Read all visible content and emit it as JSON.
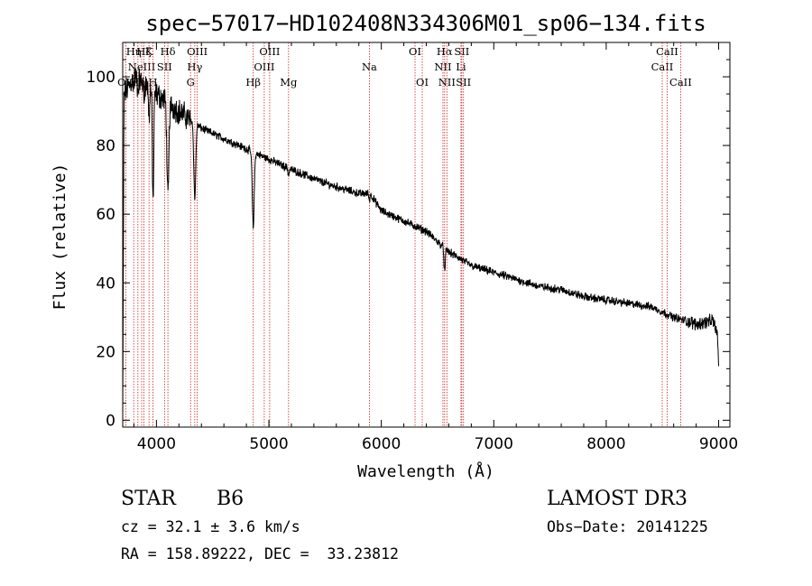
{
  "chart_data": {
    "type": "line",
    "title": "spec−57017−HD102408N334306M01_sp06−134.fits",
    "xlabel": "Wavelength (Å)",
    "ylabel": "Flux (relative)",
    "xlim": [
      3700,
      9100
    ],
    "ylim": [
      -2,
      110
    ],
    "x_ticks": [
      4000,
      5000,
      6000,
      7000,
      8000,
      9000
    ],
    "y_ticks": [
      0,
      20,
      40,
      60,
      80,
      100
    ],
    "spectral_lines": [
      {
        "wavelength": 3727,
        "label": "OII",
        "row": 3
      },
      {
        "wavelength": 3798,
        "label": "Hη",
        "row": 1
      },
      {
        "wavelength": 3835,
        "label": "Hη",
        "row": 3
      },
      {
        "wavelength": 3869,
        "label": "NeIII",
        "row": 2
      },
      {
        "wavelength": 3889,
        "label": "Hζ",
        "row": 1
      },
      {
        "wavelength": 3934,
        "label": "K",
        "row": 1
      },
      {
        "wavelength": 3969,
        "label": "H",
        "row": 3
      },
      {
        "wavelength": 4072,
        "label": "SII",
        "row": 2
      },
      {
        "wavelength": 4102,
        "label": "Hδ",
        "row": 1
      },
      {
        "wavelength": 4304,
        "label": "G",
        "row": 3
      },
      {
        "wavelength": 4341,
        "label": "Hγ",
        "row": 2
      },
      {
        "wavelength": 4363,
        "label": "OIII",
        "row": 1
      },
      {
        "wavelength": 4861,
        "label": "Hβ",
        "row": 3
      },
      {
        "wavelength": 4959,
        "label": "OIII",
        "row": 2
      },
      {
        "wavelength": 5007,
        "label": "OIII",
        "row": 1
      },
      {
        "wavelength": 5175,
        "label": "Mg",
        "row": 3
      },
      {
        "wavelength": 5894,
        "label": "Na",
        "row": 2
      },
      {
        "wavelength": 6300,
        "label": "OI",
        "row": 1
      },
      {
        "wavelength": 6364,
        "label": "OI",
        "row": 3
      },
      {
        "wavelength": 6548,
        "label": "NII",
        "row": 2
      },
      {
        "wavelength": 6563,
        "label": "Hα",
        "row": 1
      },
      {
        "wavelength": 6583,
        "label": "NII",
        "row": 3
      },
      {
        "wavelength": 6708,
        "label": "Li",
        "row": 2
      },
      {
        "wavelength": 6716,
        "label": "SII",
        "row": 1
      },
      {
        "wavelength": 6731,
        "label": "SII",
        "row": 3
      },
      {
        "wavelength": 8498,
        "label": "CaII",
        "row": 2
      },
      {
        "wavelength": 8542,
        "label": "CaII",
        "row": 1
      },
      {
        "wavelength": 8662,
        "label": "CaII",
        "row": 3
      }
    ],
    "series": [
      {
        "name": "flux",
        "continuum": [
          [
            3700,
            94
          ],
          [
            3800,
            100
          ],
          [
            3900,
            98
          ],
          [
            4000,
            95
          ],
          [
            4200,
            90
          ],
          [
            4400,
            85
          ],
          [
            4600,
            82
          ],
          [
            4800,
            79
          ],
          [
            5000,
            76
          ],
          [
            5200,
            73
          ],
          [
            5500,
            69
          ],
          [
            5800,
            66
          ],
          [
            5900,
            66
          ],
          [
            6000,
            61
          ],
          [
            6200,
            58
          ],
          [
            6400,
            55
          ],
          [
            6500,
            52
          ],
          [
            6600,
            49
          ],
          [
            6800,
            45
          ],
          [
            7000,
            43
          ],
          [
            7200,
            41
          ],
          [
            7400,
            39
          ],
          [
            7600,
            38
          ],
          [
            7800,
            36
          ],
          [
            8000,
            35
          ],
          [
            8200,
            34
          ],
          [
            8400,
            33
          ],
          [
            8600,
            30
          ],
          [
            8800,
            28
          ],
          [
            8950,
            29
          ],
          [
            8990,
            25
          ],
          [
            9000,
            15
          ]
        ],
        "absorption": [
          [
            3798,
            3,
            6
          ],
          [
            3835,
            4,
            6
          ],
          [
            3889,
            6,
            6
          ],
          [
            3934,
            10,
            7
          ],
          [
            3970,
            32,
            9
          ],
          [
            4102,
            28,
            12
          ],
          [
            4341,
            22,
            12
          ],
          [
            4861,
            22,
            12
          ],
          [
            5175,
            2,
            8
          ],
          [
            5894,
            2,
            6
          ],
          [
            6563,
            7,
            8
          ]
        ],
        "noise": 1.8
      }
    ]
  },
  "info": {
    "object_type": "STAR",
    "subclass": "B6",
    "survey": "LAMOST DR3",
    "cz": "cz = 32.1 ± 3.6 km/s",
    "obs_date": "Obs−Date: 20141225",
    "coords": "RA = 158.89222, DEC =  33.23812"
  },
  "colors": {
    "line": "#cc2222",
    "spectrum": "#000000",
    "frame": "#000000"
  }
}
